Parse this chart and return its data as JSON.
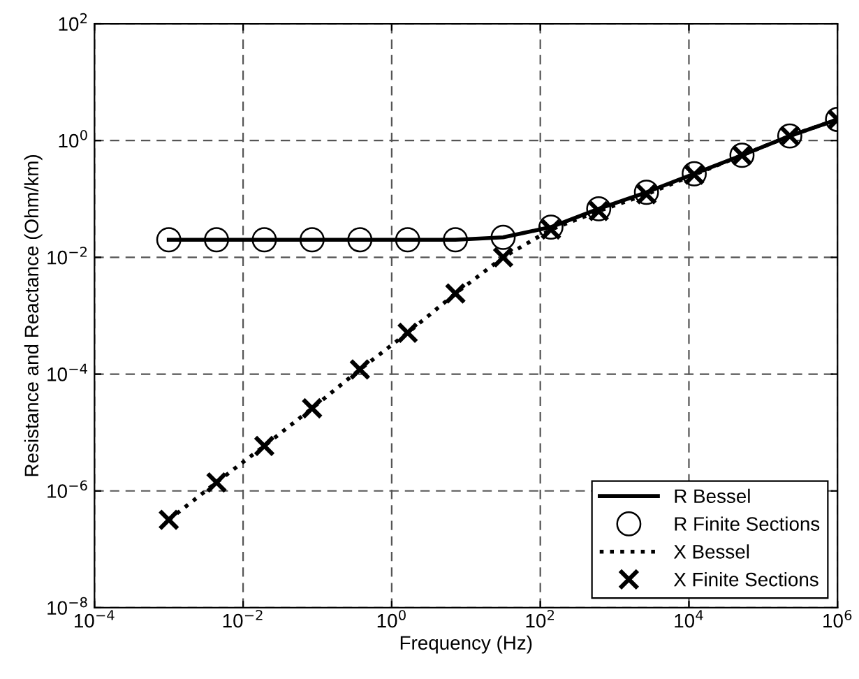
{
  "chart_data": {
    "type": "line",
    "xlabel": "Frequency (Hz)",
    "ylabel": "Resistance and Reactance (Ohm/km)",
    "x": [
      0.001,
      0.00439,
      0.0193,
      0.0848,
      0.373,
      1.64,
      7.2,
      31.6,
      139,
      611,
      2683,
      11788,
      51795,
      227585,
      1000000
    ],
    "series": [
      {
        "name": "R Bessel",
        "color": "#000000",
        "line_style": "solid",
        "marker": "none",
        "values": [
          0.02,
          0.02,
          0.02,
          0.02,
          0.02,
          0.02,
          0.02,
          0.022,
          0.033,
          0.068,
          0.13,
          0.27,
          0.56,
          1.2,
          2.3
        ]
      },
      {
        "name": "R Finite Sections",
        "type": "scatter",
        "color": "#000000",
        "marker": "circle",
        "values": [
          0.02,
          0.02,
          0.02,
          0.02,
          0.02,
          0.02,
          0.02,
          0.022,
          0.033,
          0.068,
          0.13,
          0.27,
          0.56,
          1.2,
          2.3
        ]
      },
      {
        "name": "X Bessel",
        "color": "#000000",
        "line_style": "dotted",
        "marker": "none",
        "values": [
          3.2e-07,
          1.4e-06,
          5.9e-06,
          2.6e-05,
          0.00012,
          0.00051,
          0.0024,
          0.01,
          0.03,
          0.062,
          0.12,
          0.26,
          0.56,
          1.2,
          2.3
        ]
      },
      {
        "name": "X Finite Sections",
        "type": "scatter",
        "color": "#000000",
        "marker": "cross",
        "values": [
          3.2e-07,
          1.4e-06,
          5.9e-06,
          2.6e-05,
          0.00012,
          0.00051,
          0.0024,
          0.01,
          0.03,
          0.062,
          0.12,
          0.26,
          0.56,
          1.2,
          2.3
        ]
      }
    ],
    "log": "xy",
    "xlim": [
      0.0001,
      1000000
    ],
    "ylim": [
      1e-08,
      100
    ],
    "xticks": [
      {
        "value": 0.0001,
        "label": "10$^{−4}$"
      },
      {
        "value": 0.01,
        "label": "10$^{−2}$"
      },
      {
        "value": 1,
        "label": "10$^{0}$"
      },
      {
        "value": 100,
        "label": "10$^{2}$"
      },
      {
        "value": 10000,
        "label": "10$^{4}$"
      },
      {
        "value": 1000000,
        "label": "10$^{6}$"
      }
    ],
    "yticks": [
      {
        "value": 1e-08,
        "label": "10$^{−8}$"
      },
      {
        "value": 1e-06,
        "label": "10$^{−6}$"
      },
      {
        "value": 0.0001,
        "label": "10$^{−4}$"
      },
      {
        "value": 0.01,
        "label": "10$^{−2}$"
      },
      {
        "value": 1,
        "label": "10$^{0}$"
      },
      {
        "value": 100,
        "label": "10$^{2}$"
      }
    ],
    "grid": true,
    "legend": "bottom right"
  }
}
